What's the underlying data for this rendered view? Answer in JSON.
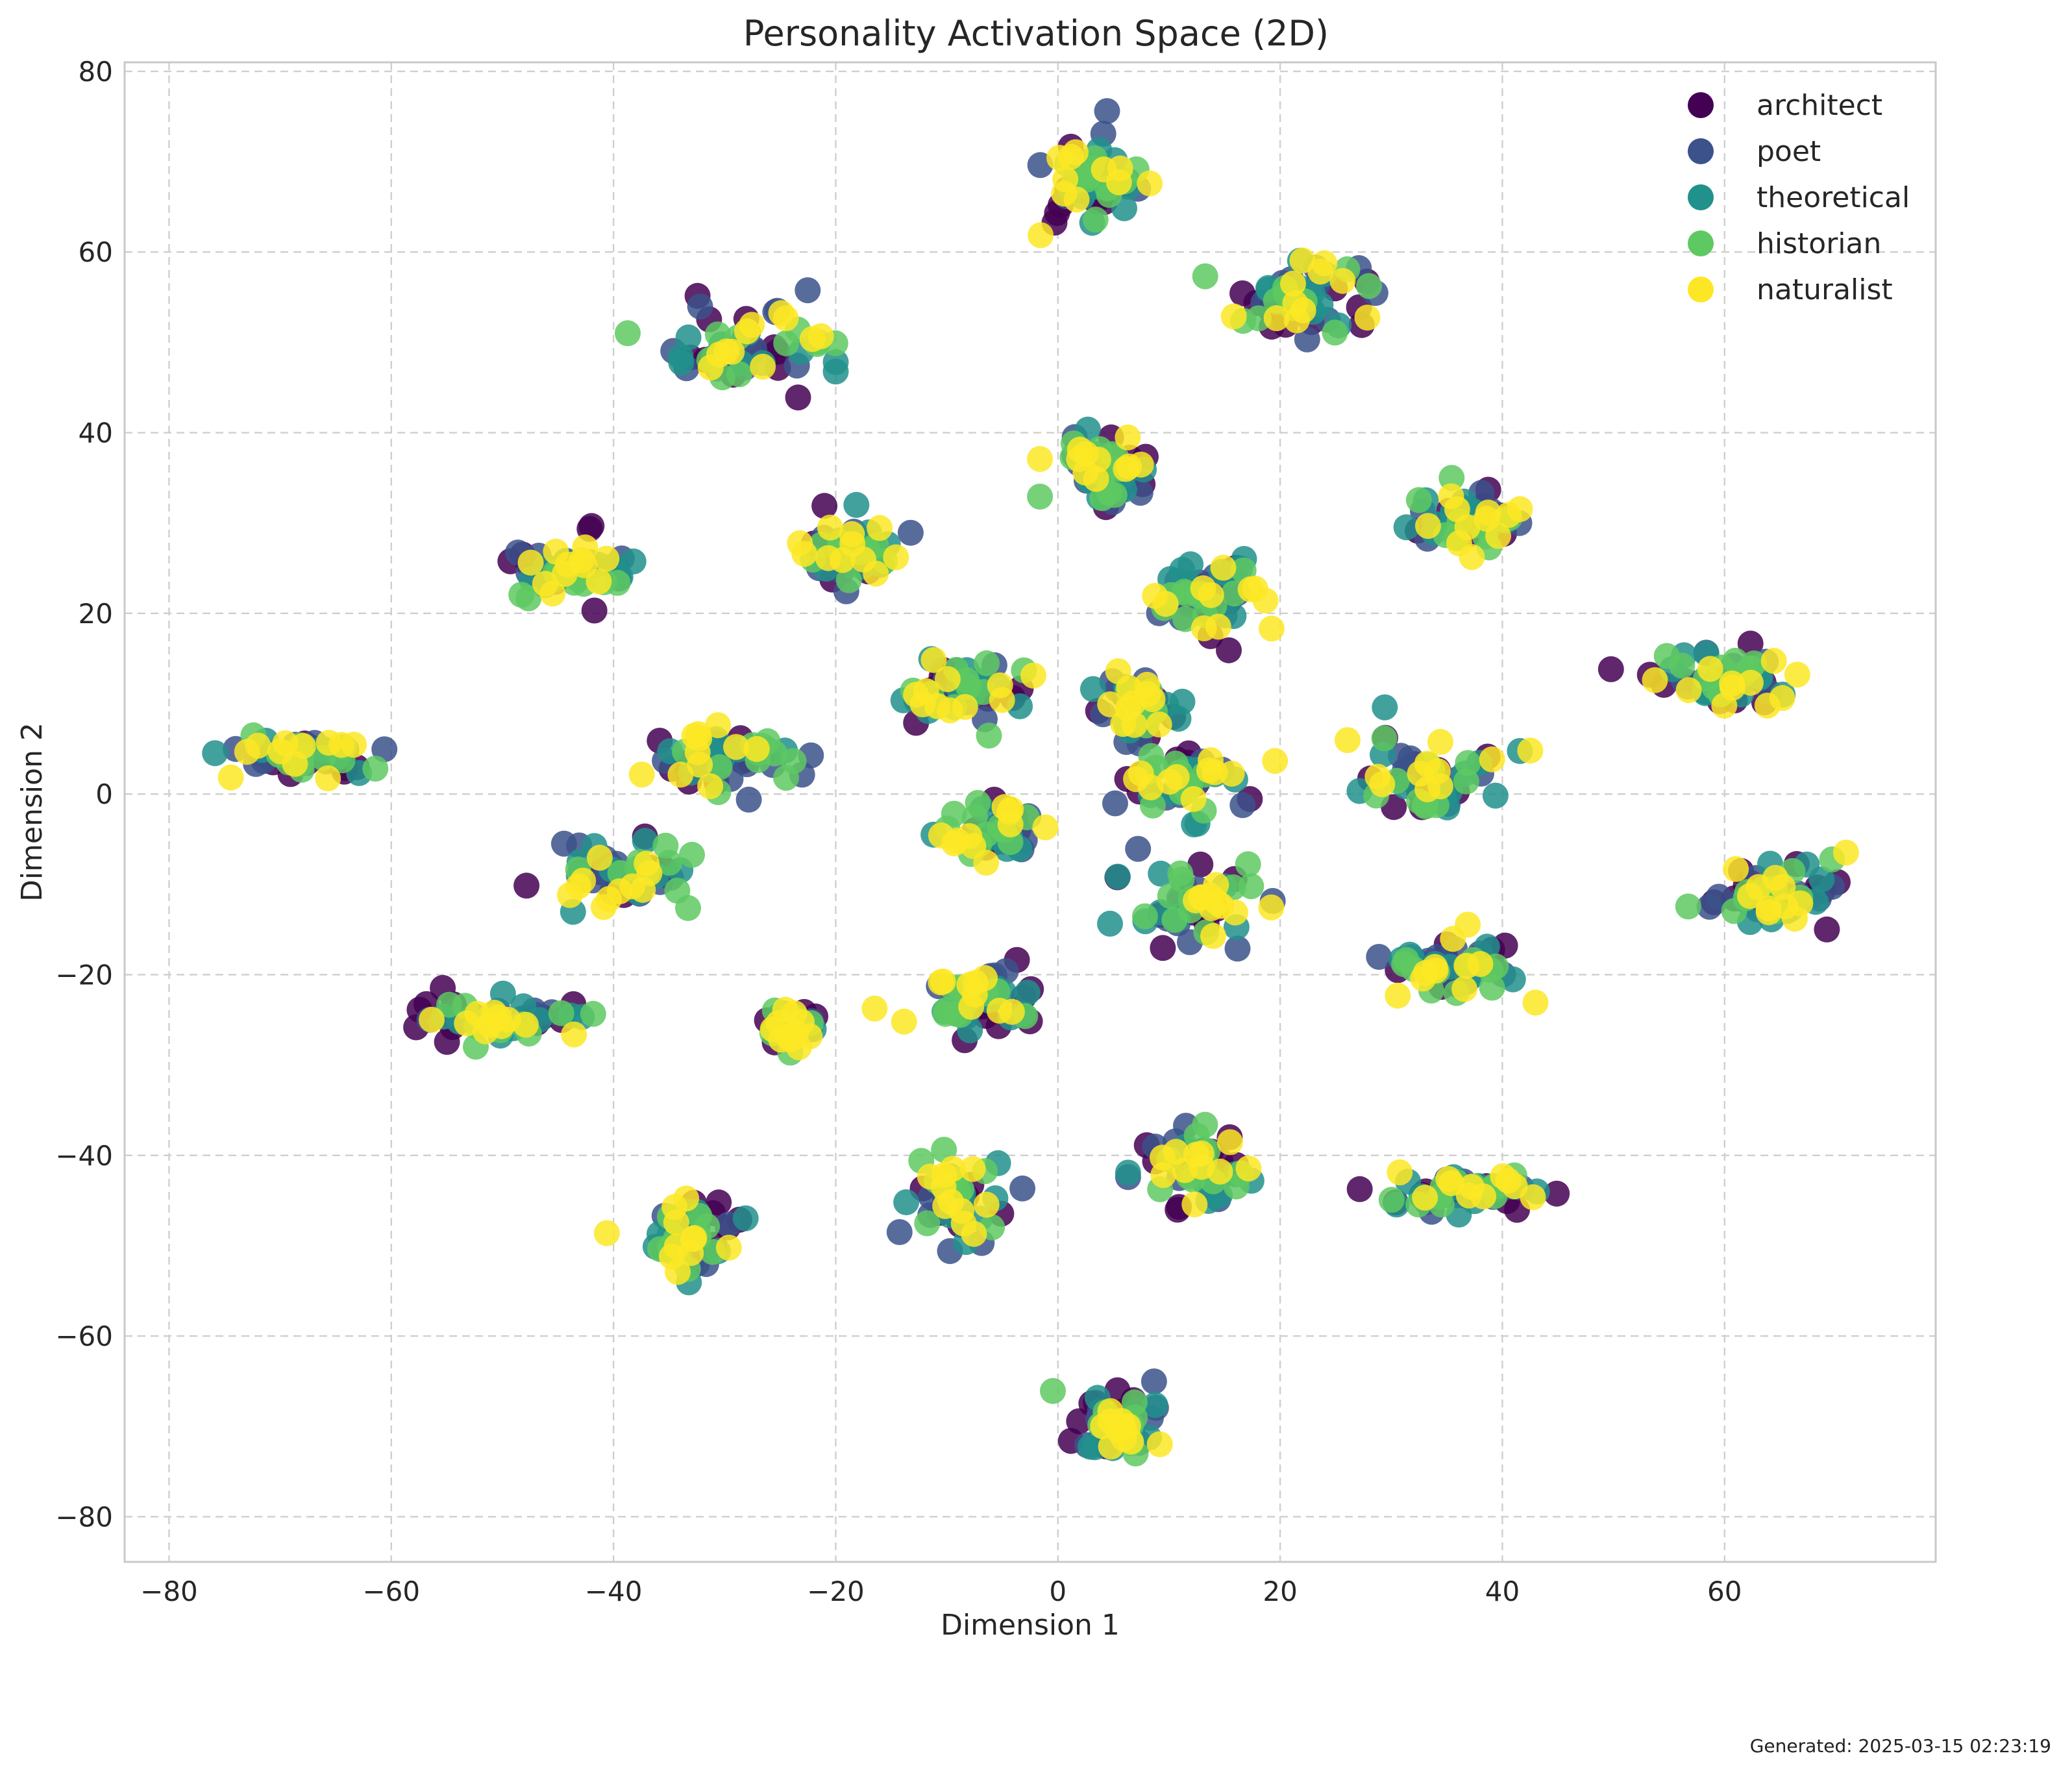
{
  "footer": {
    "generated": "Generated: 2025-03-15 02:23:19"
  },
  "chart_data": {
    "type": "scatter",
    "title": "Personality Activation Space (2D)",
    "xlabel": "Dimension 1",
    "ylabel": "Dimension 2",
    "xlim": [
      -84,
      79
    ],
    "ylim": [
      -85,
      81
    ],
    "xticks": [
      -80,
      -60,
      -40,
      -20,
      0,
      20,
      40,
      60
    ],
    "yticks": [
      -80,
      -60,
      -40,
      -20,
      0,
      20,
      40,
      60,
      80
    ],
    "grid": true,
    "legend_position": "top-right",
    "series": [
      {
        "name": "architect",
        "color": "#440154"
      },
      {
        "name": "poet",
        "color": "#3b528b"
      },
      {
        "name": "theoretical",
        "color": "#21918c"
      },
      {
        "name": "historian",
        "color": "#5ec962"
      },
      {
        "name": "naturalist",
        "color": "#fde725"
      }
    ],
    "clusters": [
      {
        "center": [
          3,
          68
        ],
        "spread": [
          4,
          4
        ]
      },
      {
        "center": [
          -28,
          50
        ],
        "spread": [
          7,
          4
        ]
      },
      {
        "center": [
          22,
          55
        ],
        "spread": [
          5,
          4
        ]
      },
      {
        "center": [
          4,
          36
        ],
        "spread": [
          4,
          4
        ]
      },
      {
        "center": [
          37,
          30
        ],
        "spread": [
          4,
          4
        ]
      },
      {
        "center": [
          -45,
          25
        ],
        "spread": [
          5,
          3
        ]
      },
      {
        "center": [
          -18,
          27
        ],
        "spread": [
          5,
          3
        ]
      },
      {
        "center": [
          14,
          22
        ],
        "spread": [
          4,
          4
        ]
      },
      {
        "center": [
          60,
          13
        ],
        "spread": [
          6,
          3
        ]
      },
      {
        "center": [
          -8,
          11
        ],
        "spread": [
          5,
          3
        ]
      },
      {
        "center": [
          7,
          10
        ],
        "spread": [
          3,
          3
        ]
      },
      {
        "center": [
          -67,
          4
        ],
        "spread": [
          7,
          2
        ]
      },
      {
        "center": [
          -30,
          4
        ],
        "spread": [
          7,
          3
        ]
      },
      {
        "center": [
          34,
          2
        ],
        "spread": [
          6,
          4
        ]
      },
      {
        "center": [
          11,
          1
        ],
        "spread": [
          6,
          4
        ]
      },
      {
        "center": [
          -6,
          -4
        ],
        "spread": [
          4,
          3
        ]
      },
      {
        "center": [
          -39,
          -9
        ],
        "spread": [
          6,
          3
        ]
      },
      {
        "center": [
          65,
          -11
        ],
        "spread": [
          6,
          3
        ]
      },
      {
        "center": [
          12,
          -13
        ],
        "spread": [
          5,
          4
        ]
      },
      {
        "center": [
          35,
          -19
        ],
        "spread": [
          6,
          3
        ]
      },
      {
        "center": [
          -51,
          -25
        ],
        "spread": [
          8,
          2
        ]
      },
      {
        "center": [
          -7,
          -23
        ],
        "spread": [
          5,
          4
        ]
      },
      {
        "center": [
          -24,
          -26
        ],
        "spread": [
          2,
          2
        ]
      },
      {
        "center": [
          -9,
          -45
        ],
        "spread": [
          4,
          5
        ]
      },
      {
        "center": [
          12,
          -41
        ],
        "spread": [
          4,
          4
        ]
      },
      {
        "center": [
          36,
          -44
        ],
        "spread": [
          6,
          2
        ]
      },
      {
        "center": [
          -33,
          -49
        ],
        "spread": [
          4,
          4
        ]
      },
      {
        "center": [
          5,
          -70
        ],
        "spread": [
          4,
          3
        ]
      }
    ]
  }
}
